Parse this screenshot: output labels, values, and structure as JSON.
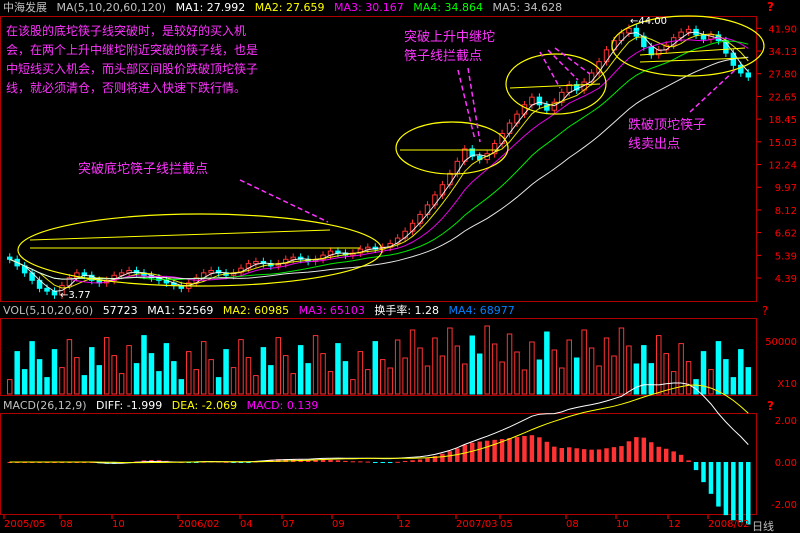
{
  "header": {
    "stock_name": "中海发展",
    "ma_label": "MA(5,10,20,60,120)",
    "ma1": "MA1: 27.992",
    "ma2": "MA2: 27.659",
    "ma3": "MA3: 30.167",
    "ma4": "MA4: 34.864",
    "ma5": "MA5: 34.628"
  },
  "vol_header": {
    "label": "VOL(5,10,20,60)",
    "value": "57723",
    "ma1": "MA1: 52569",
    "ma2": "MA2: 60985",
    "ma3": "MA3: 65103",
    "turnover": "换手率: 1.28",
    "ma4": "MA4: 68977"
  },
  "macd_header": {
    "label": "MACD(26,12,9)",
    "diff": "DIFF: -1.999",
    "dea": "DEA: -2.069",
    "macd": "MACD: 0.139"
  },
  "annotations": {
    "left_text": [
      "在该股的底坨筷子线突破时，是较好的买入机",
      "会，在两个上升中继坨附近突破的筷子线，也是",
      "中短线买入机会，而头部区间股价跌破顶坨筷子",
      "线，就必须清仓，否则将进入快速下跌行情。"
    ],
    "bottom_breakout": "突破底坨筷子线拦截点",
    "mid_breakout": [
      "突破上升中继坨",
      "筷子线拦截点"
    ],
    "top_breakdown": [
      "跌破顶坨筷子",
      "线卖出点"
    ],
    "low_price": "3.77",
    "high_price": "44.00"
  },
  "colors": {
    "up": "#ff3333",
    "down": "#00ffff",
    "ma1": "#ffffff",
    "ma2": "#ffff00",
    "ma3": "#ff00ff",
    "ma4": "#00ff00",
    "ma5": "#0080ff",
    "anno": "#ff33ff",
    "ellipse": "#ffff00",
    "axis_red": "#ff0000"
  },
  "chart_data": [
    {
      "type": "candlestick",
      "title": "中海发展",
      "log_scale": true,
      "y_ticks": [
        "41.90",
        "34.13",
        "27.80",
        "22.65",
        "18.45",
        "15.03",
        "12.24",
        "9.97",
        "8.12",
        "6.62",
        "5.39",
        "4.39"
      ],
      "x_ticks": [
        "2005/05",
        "08",
        "10",
        "2006/02",
        "04",
        "07",
        "09",
        "12",
        "2007/03",
        "05",
        "08",
        "10",
        "12",
        "2008/02"
      ],
      "ylim": [
        3.6,
        46
      ],
      "close": [
        5.2,
        4.9,
        4.6,
        4.3,
        4.0,
        3.9,
        3.77,
        4.1,
        4.4,
        4.6,
        4.5,
        4.3,
        4.2,
        4.3,
        4.5,
        4.6,
        4.7,
        4.6,
        4.5,
        4.4,
        4.3,
        4.2,
        4.1,
        4.0,
        4.2,
        4.4,
        4.6,
        4.7,
        4.6,
        4.5,
        4.6,
        4.8,
        5.0,
        5.1,
        5.0,
        4.9,
        5.0,
        5.2,
        5.3,
        5.2,
        5.1,
        5.2,
        5.4,
        5.6,
        5.5,
        5.4,
        5.5,
        5.7,
        5.8,
        5.7,
        5.8,
        6.0,
        6.3,
        6.7,
        7.2,
        7.8,
        8.5,
        9.3,
        10.2,
        11.3,
        12.6,
        14.1,
        13.2,
        12.8,
        13.5,
        14.8,
        16.2,
        17.8,
        19.3,
        21.0,
        22.5,
        21.0,
        20.0,
        21.5,
        23.5,
        25.2,
        24.0,
        25.8,
        28.0,
        31.0,
        34.5,
        37.5,
        40.2,
        41.9,
        39.0,
        35.5,
        33.0,
        34.5,
        36.0,
        38.5,
        40.5,
        41.5,
        39.5,
        38.0,
        39.5,
        37.5,
        33.5,
        30.0,
        28.0,
        27.0
      ],
      "volume_ticks": [
        "50000",
        "X10"
      ],
      "macd_ticks": [
        "2.00",
        "0.00",
        "-2.00"
      ]
    }
  ]
}
